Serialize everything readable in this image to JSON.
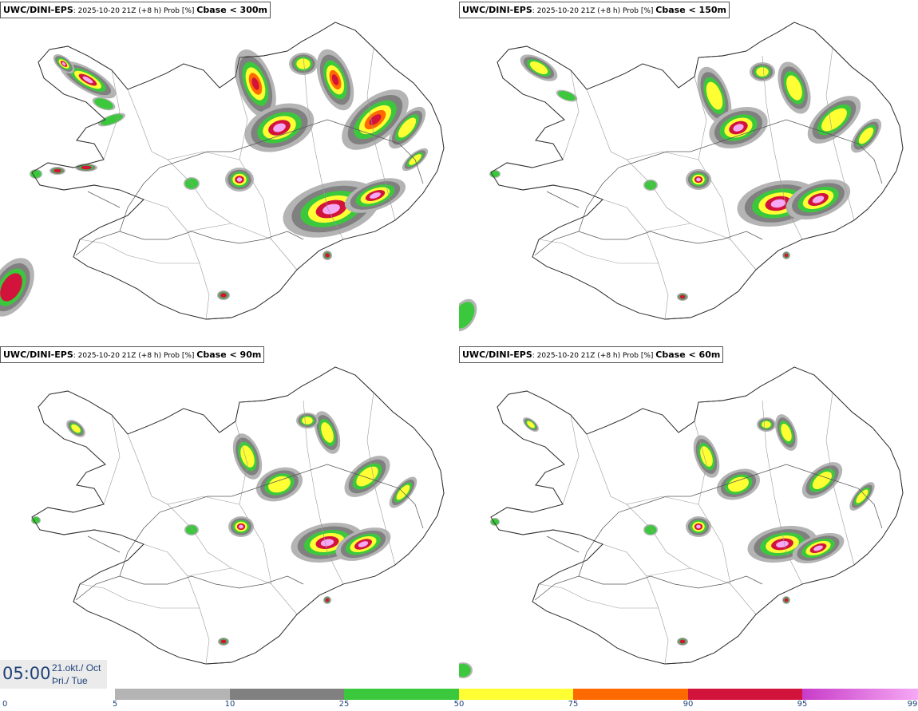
{
  "panels": [
    {
      "model": "UWC/DINI-EPS",
      "run": ": 2025-10-20 21Z (+8 h) Prob [%] ",
      "param": "Cbase < 300m"
    },
    {
      "model": "UWC/DINI-EPS",
      "run": ": 2025-10-20 21Z (+8 h) Prob [%] ",
      "param": "Cbase < 150m"
    },
    {
      "model": "UWC/DINI-EPS",
      "run": ": 2025-10-20 21Z (+8 h) Prob [%] ",
      "param": "Cbase < 90m"
    },
    {
      "model": "UWC/DINI-EPS",
      "run": ": 2025-10-20 21Z (+8 h) Prob [%] ",
      "param": "Cbase < 60m"
    }
  ],
  "time": {
    "clock": "05:00",
    "date_line": "21.okt./ Oct",
    "weekday_line": "Þri./ Tue"
  },
  "legend": {
    "labels": [
      "0",
      "5",
      "10",
      "25",
      "50",
      "75",
      "90",
      "95",
      "99"
    ],
    "colors": {
      "5-10": "#b4b4b4",
      "10-25": "#808080",
      "25-50": "#3cc83c",
      "50-75": "#ffff33",
      "75-90": "#ff6a00",
      "90-95": "#d2143c",
      "95-99": "#c83cc8",
      "99": "#f5a8f5"
    }
  }
}
